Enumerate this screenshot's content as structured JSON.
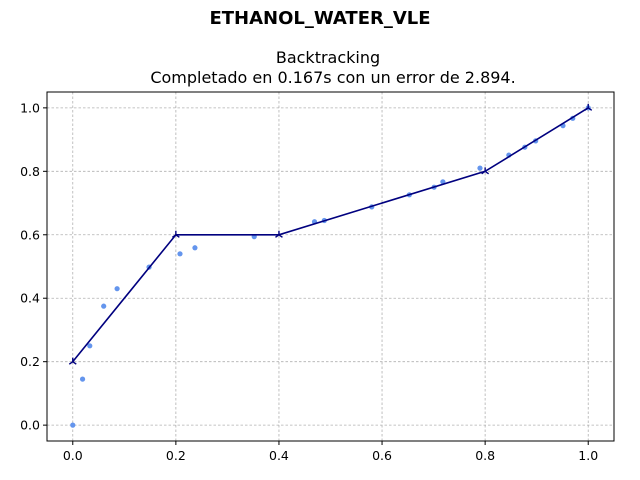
{
  "chart_data": {
    "type": "scatter",
    "suptitle": "ETHANOL_WATER_VLE",
    "title_line1": "Backtracking",
    "title_line2": "Completado en 0.167s con un error de 2.894.",
    "xlabel": "",
    "ylabel": "",
    "xlim": [
      -0.05,
      1.05
    ],
    "ylim": [
      -0.05,
      1.05
    ],
    "xticks": [
      0.0,
      0.2,
      0.4,
      0.6,
      0.8,
      1.0
    ],
    "xtick_labels": [
      "0.0",
      "0.2",
      "0.4",
      "0.6",
      "0.8",
      "1.0"
    ],
    "yticks": [
      0.0,
      0.2,
      0.4,
      0.6,
      0.8,
      1.0
    ],
    "ytick_labels": [
      "0.0",
      "0.2",
      "0.4",
      "0.6",
      "0.8",
      "1.0"
    ],
    "grid": true,
    "series": [
      {
        "kind": "scatter",
        "color": "#6495ed",
        "x": [
          0.0,
          0.019,
          0.033,
          0.06,
          0.086,
          0.148,
          0.208,
          0.237,
          0.352,
          0.469,
          0.488,
          0.58,
          0.653,
          0.701,
          0.718,
          0.79,
          0.846,
          0.877,
          0.898,
          0.951,
          0.97,
          1.0
        ],
        "y": [
          0.0,
          0.145,
          0.25,
          0.375,
          0.43,
          0.498,
          0.54,
          0.559,
          0.594,
          0.641,
          0.645,
          0.688,
          0.726,
          0.75,
          0.767,
          0.81,
          0.851,
          0.876,
          0.896,
          0.944,
          0.967,
          1.0
        ]
      },
      {
        "kind": "line",
        "color": "#00007f",
        "marker": "tri_up",
        "x": [
          0.0,
          0.2,
          0.4,
          0.8,
          1.0
        ],
        "y": [
          0.2,
          0.6,
          0.6,
          0.8,
          1.0
        ]
      }
    ]
  }
}
